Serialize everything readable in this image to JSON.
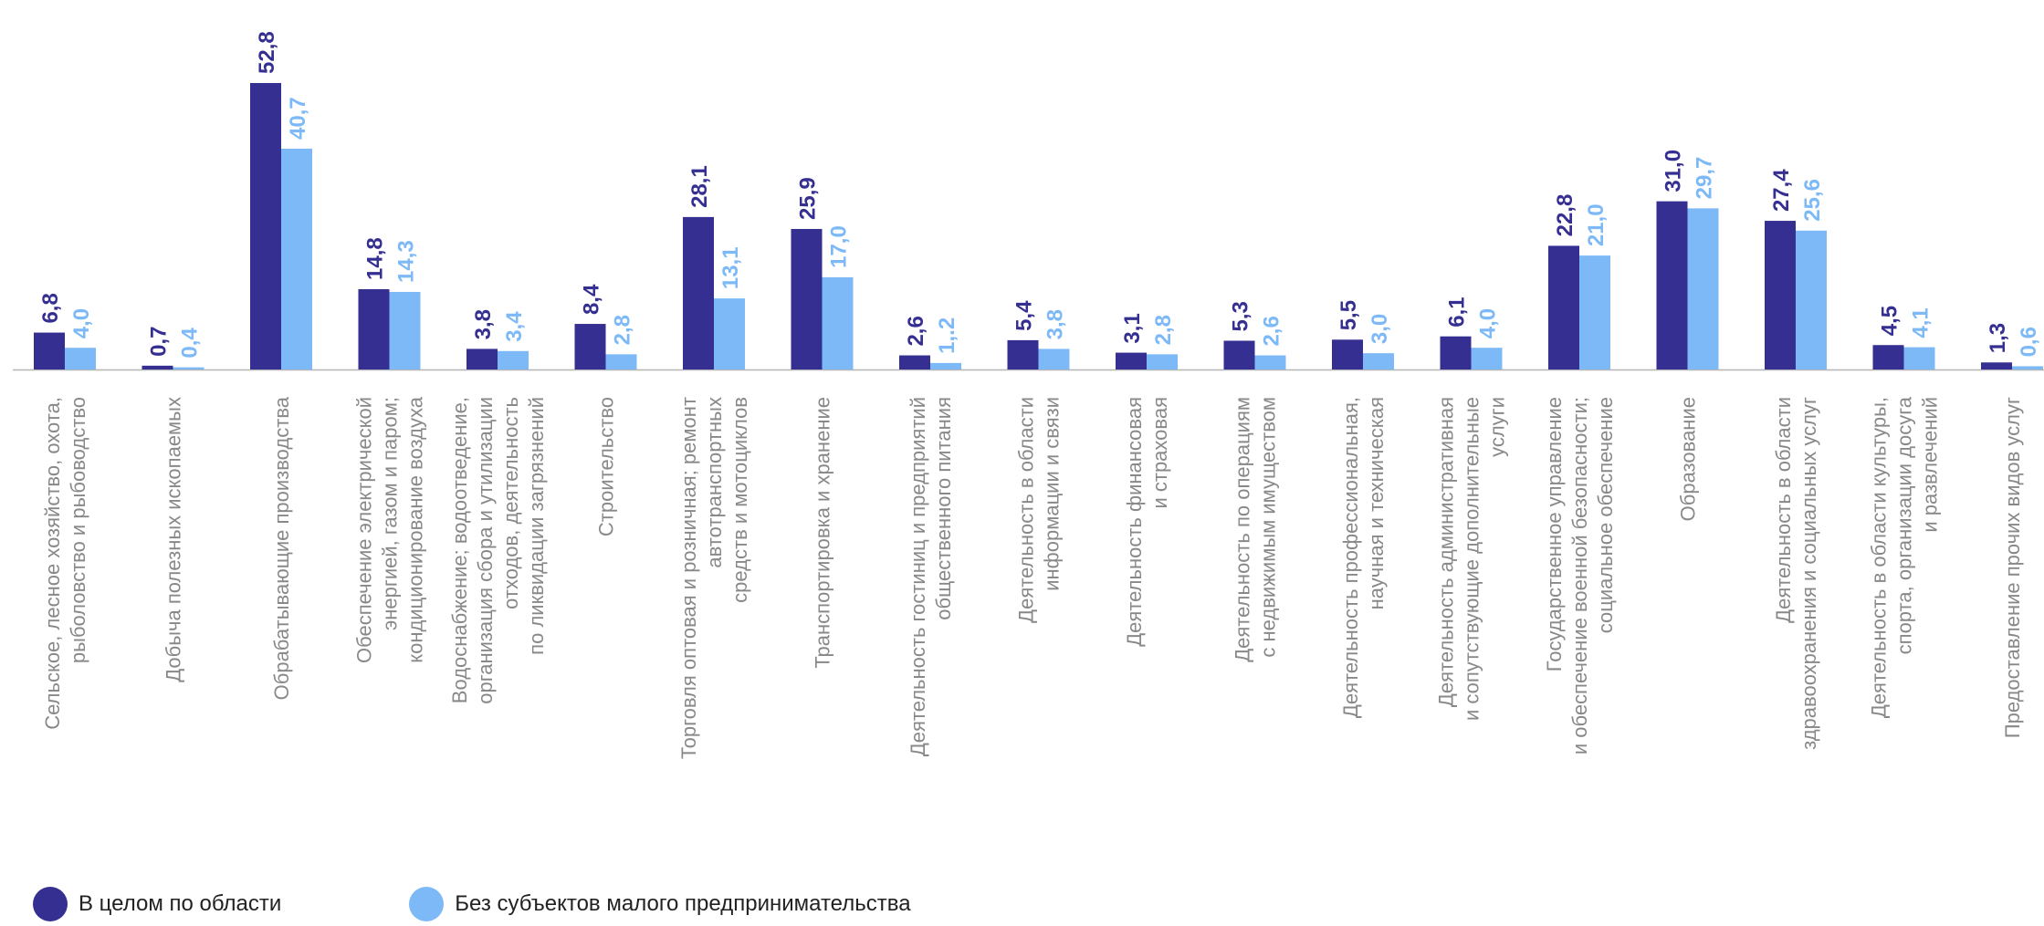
{
  "chart_data": {
    "type": "bar",
    "title": "",
    "xlabel": "",
    "ylabel": "",
    "ylim": [
      0,
      52.8
    ],
    "grid": false,
    "legend_position": "bottom-left",
    "categories": [
      [
        "Сельское, лесное хозяйство, охота,",
        "рыболовство и рыбоводство"
      ],
      [
        "Добыча полезных ископаемых"
      ],
      [
        "Обрабатывающие производства"
      ],
      [
        "Обеспечение электрической",
        "энергией, газом и паром;",
        "кондиционирование воздуха"
      ],
      [
        "Водоснабжение; водоотведение,",
        "организация сбора и утилизации",
        "отходов, деятельность",
        "по ликвидации загрязнений"
      ],
      [
        "Строительство"
      ],
      [
        "Торговля оптовая и розничная; ремонт",
        "автотранспортных",
        "средств и мотоциклов"
      ],
      [
        "Транспортировка и хранение"
      ],
      [
        "Деятельность гостиниц и предприятий",
        "общественного питания"
      ],
      [
        "Деятельность в области",
        "информации и связи"
      ],
      [
        "Деятельность финансовая",
        "и страховая"
      ],
      [
        "Деятельность по операциям",
        "с недвижимым имуществом"
      ],
      [
        "Деятельность профессиональная,",
        "научная и техническая"
      ],
      [
        "Деятельность административная",
        "и сопутствующие дополнительные",
        "услуги"
      ],
      [
        "Государственное управление",
        "и обеспечение военной безопасности;",
        "социальное обеспечение"
      ],
      [
        "Образование"
      ],
      [
        "Деятельность в области",
        "здравоохранения и социальных услуг"
      ],
      [
        "Деятельность в области культуры,",
        "спорта, организации досуга",
        "и развлечений"
      ],
      [
        "Предоставление прочих видов услуг"
      ]
    ],
    "series": [
      {
        "name": "В целом по области",
        "color": "#352f91",
        "values": [
          6.8,
          0.7,
          52.8,
          14.8,
          3.8,
          8.4,
          28.1,
          25.9,
          2.6,
          5.4,
          3.1,
          5.3,
          5.5,
          6.1,
          22.8,
          31.0,
          27.4,
          4.5,
          1.3
        ],
        "labels": [
          "6,8",
          "0,7",
          "52,8",
          "14,8",
          "3,8",
          "8,4",
          "28,1",
          "25,9",
          "2,6",
          "5,4",
          "3,1",
          "5,3",
          "5,5",
          "6,1",
          "22,8",
          "31,0",
          "27,4",
          "4,5",
          "1,3"
        ]
      },
      {
        "name": "Без субъектов малого предпринимательства",
        "color": "#7db9f7",
        "values": [
          4.0,
          0.4,
          40.7,
          14.3,
          3.4,
          2.8,
          13.1,
          17.0,
          1.2,
          3.8,
          2.8,
          2.6,
          3.0,
          4.0,
          21.0,
          29.7,
          25.6,
          4.1,
          0.6
        ],
        "labels": [
          "4,0",
          "0,4",
          "40,7",
          "14,3",
          "3,4",
          "2,8",
          "13,1",
          "17,0",
          "1,.2",
          "3,8",
          "2,8",
          "2,6",
          "3,0",
          "4,0",
          "21,0",
          "29,7",
          "25,6",
          "4,1",
          "0,6"
        ]
      }
    ]
  },
  "legend": {
    "items": [
      {
        "label": "В целом по области",
        "color": "#352f91"
      },
      {
        "label": "Без субъектов малого предпринимательства",
        "color": "#7db9f7"
      }
    ]
  }
}
